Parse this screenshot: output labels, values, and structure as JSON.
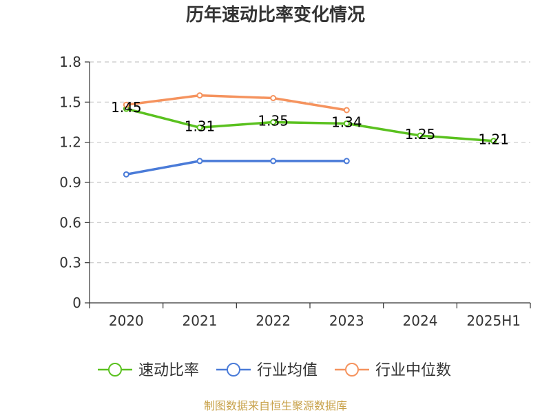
{
  "chart_data": {
    "type": "line",
    "title": "历年速动比率变化情况",
    "categories": [
      "2020",
      "2021",
      "2022",
      "2023",
      "2024",
      "2025H1"
    ],
    "ylim": [
      0,
      1.8
    ],
    "yticks": [
      "0",
      "0.3",
      "0.6",
      "0.9",
      "1.2",
      "1.5",
      "1.8"
    ],
    "ytick_values": [
      0,
      0.3,
      0.6,
      0.9,
      1.2,
      1.5,
      1.8
    ],
    "grid": true,
    "legend_position": "bottom",
    "series": [
      {
        "name": "速动比率",
        "color": "#5ac11f",
        "values": [
          1.45,
          1.31,
          1.35,
          1.34,
          1.25,
          1.21
        ],
        "labels": [
          "1.45",
          "1.31",
          "1.35",
          "1.34",
          "1.25",
          "1.21"
        ]
      },
      {
        "name": "行业均值",
        "color": "#4a7bd8",
        "values": [
          0.96,
          1.06,
          1.06,
          1.06,
          null,
          null
        ],
        "labels": []
      },
      {
        "name": "行业中位数",
        "color": "#f5935e",
        "values": [
          1.48,
          1.55,
          1.53,
          1.44,
          null,
          null
        ],
        "labels": []
      }
    ]
  },
  "source": {
    "text": "制图数据来自恒生聚源数据库",
    "color": "#c8a24b"
  }
}
